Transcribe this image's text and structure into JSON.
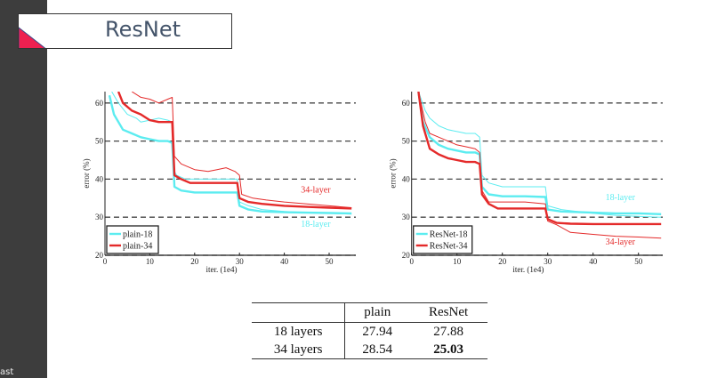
{
  "slide": {
    "title": "ResNet",
    "sidebar_footer": "ast"
  },
  "colors": {
    "cyan": "#5cecf0",
    "red": "#e42a2a",
    "sidebar": "#3d3d3d",
    "accent_triangle": "#ee2050"
  },
  "chart_data": [
    {
      "type": "line",
      "xlabel": "iter. (1e4)",
      "ylabel": "error (%)",
      "xlim": [
        0,
        55
      ],
      "ylim": [
        20,
        63
      ],
      "xticks": [
        0,
        10,
        20,
        30,
        40,
        50
      ],
      "yticks": [
        20,
        30,
        40,
        50,
        60
      ],
      "grid": "horizontal dashed",
      "legend": {
        "placement": "bottom-left",
        "entries": [
          {
            "label": "plain-18",
            "color": "#5cecf0"
          },
          {
            "label": "plain-34",
            "color": "#e42a2a"
          }
        ]
      },
      "annotations": [
        {
          "text": "34-layer",
          "color": "#e42a2a",
          "x": 47,
          "y": 36.5
        },
        {
          "text": "18-layer",
          "color": "#5cecf0",
          "x": 47,
          "y": 27.5
        }
      ],
      "series": [
        {
          "name": "plain-18 train",
          "color": "#5cecf0",
          "thick": false,
          "x": [
            1.5,
            3,
            5,
            7,
            8,
            10,
            12,
            14,
            15,
            15.5,
            16,
            18,
            20,
            25,
            29.5,
            30,
            32,
            35,
            40,
            45,
            50,
            55
          ],
          "y": [
            63,
            60,
            57,
            56,
            55,
            55.5,
            56,
            55.5,
            55,
            42,
            41,
            40,
            40,
            40,
            40,
            34,
            33,
            32,
            31.5,
            31.2,
            31,
            30.8
          ]
        },
        {
          "name": "plain-18 val",
          "color": "#5cecf0",
          "thick": true,
          "x": [
            1,
            2,
            4,
            6,
            8,
            10,
            12,
            14,
            15,
            15.5,
            17,
            20,
            25,
            29.5,
            30,
            32,
            35,
            40,
            45,
            50,
            55
          ],
          "y": [
            62,
            57,
            53,
            52,
            51,
            50.5,
            50,
            50,
            49.5,
            38,
            37,
            36.5,
            36.5,
            36.5,
            33,
            32,
            31.5,
            31.3,
            31.2,
            31.1,
            31
          ]
        },
        {
          "name": "plain-34 train",
          "color": "#e42a2a",
          "thick": false,
          "x": [
            6,
            8,
            10,
            12,
            14,
            15,
            15.5,
            17,
            20,
            23,
            25,
            27,
            29,
            30,
            30.5,
            33,
            36,
            40,
            45,
            50,
            55
          ],
          "y": [
            63,
            61.5,
            61,
            60,
            61,
            61.5,
            46,
            44,
            42.5,
            42,
            42.5,
            43,
            42,
            41,
            36,
            35,
            34.5,
            34,
            33.5,
            33,
            32.5
          ]
        },
        {
          "name": "plain-34 val",
          "color": "#e42a2a",
          "thick": true,
          "x": [
            3,
            4,
            6,
            8,
            10,
            12,
            15,
            15.5,
            17,
            19,
            22,
            25,
            29.5,
            30,
            32,
            35,
            40,
            45,
            50,
            55
          ],
          "y": [
            63,
            60,
            58,
            57,
            55.5,
            55,
            55,
            41,
            40,
            39,
            39,
            39,
            39,
            35,
            34,
            33.5,
            33,
            32.7,
            32.5,
            32.3
          ]
        }
      ]
    },
    {
      "type": "line",
      "xlabel": "iter. (1e4)",
      "ylabel": "error (%)",
      "xlim": [
        0,
        55
      ],
      "ylim": [
        20,
        63
      ],
      "xticks": [
        0,
        10,
        20,
        30,
        40,
        50
      ],
      "yticks": [
        20,
        30,
        40,
        50,
        60
      ],
      "grid": "horizontal dashed",
      "legend": {
        "placement": "bottom-left",
        "entries": [
          {
            "label": "ResNet-18",
            "color": "#5cecf0"
          },
          {
            "label": "ResNet-34",
            "color": "#e42a2a"
          }
        ]
      },
      "annotations": [
        {
          "text": "18-layer",
          "color": "#5cecf0",
          "x": 46,
          "y": 34.5
        },
        {
          "text": "34-layer",
          "color": "#e42a2a",
          "x": 46,
          "y": 22.8
        }
      ],
      "series": [
        {
          "name": "ResNet-18 train",
          "color": "#5cecf0",
          "thick": false,
          "x": [
            1.5,
            3,
            4,
            6,
            8,
            10,
            12,
            14,
            15,
            15.5,
            17,
            20,
            25,
            29.5,
            30,
            33,
            40,
            45,
            50,
            55
          ],
          "y": [
            63,
            58,
            56,
            54,
            53,
            52.5,
            52,
            52,
            51,
            41,
            39,
            38,
            38,
            38,
            33,
            32,
            31,
            30.5,
            30.2,
            30
          ]
        },
        {
          "name": "ResNet-18 val",
          "color": "#5cecf0",
          "thick": true,
          "x": [
            1.5,
            2.5,
            4,
            6,
            8,
            10,
            12,
            14,
            15,
            15.5,
            17,
            20,
            25,
            29.5,
            30,
            33,
            40,
            45,
            50,
            55
          ],
          "y": [
            63,
            55,
            51,
            49,
            48,
            47.5,
            47,
            47,
            46.5,
            38,
            36,
            35.5,
            35.5,
            35.3,
            32,
            31.5,
            31.2,
            31,
            31,
            30.8
          ]
        },
        {
          "name": "ResNet-34 train",
          "color": "#e42a2a",
          "thick": false,
          "x": [
            1.5,
            3,
            4,
            6,
            8,
            10,
            12,
            14,
            15,
            15.5,
            17,
            20,
            25,
            29.5,
            30,
            32,
            35,
            40,
            45,
            50,
            55
          ],
          "y": [
            63,
            55,
            52,
            51,
            50,
            49,
            48.5,
            48,
            47,
            37,
            34,
            34,
            34,
            33.5,
            29,
            28,
            26,
            25.5,
            25,
            24.8,
            24.5
          ]
        },
        {
          "name": "ResNet-34 val",
          "color": "#e42a2a",
          "thick": true,
          "x": [
            1.5,
            2.5,
            4,
            6,
            8,
            10,
            12,
            14,
            15,
            15.5,
            17,
            19,
            22,
            25,
            29.5,
            30,
            32,
            35,
            40,
            50,
            55
          ],
          "y": [
            63,
            54,
            48,
            46.5,
            45.5,
            45,
            44.5,
            44.5,
            44,
            36,
            33.5,
            32.3,
            32.3,
            32.3,
            32.3,
            29.5,
            28.5,
            28.3,
            28.2,
            28.2,
            28.2
          ]
        }
      ]
    }
  ],
  "table": {
    "headers": [
      "",
      "plain",
      "ResNet"
    ],
    "rows": [
      {
        "label": "18 layers",
        "plain": "27.94",
        "resnet": "27.88"
      },
      {
        "label": "34 layers",
        "plain": "28.54",
        "resnet": "25.03"
      }
    ]
  }
}
